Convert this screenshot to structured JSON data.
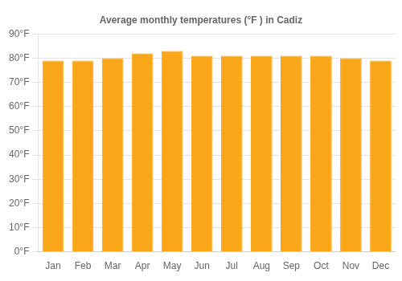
{
  "chart_data": {
    "type": "bar",
    "title": "Average monthly temperatures (°F ) in Cadiz",
    "categories": [
      "Jan",
      "Feb",
      "Mar",
      "Apr",
      "May",
      "Jun",
      "Jul",
      "Aug",
      "Sep",
      "Oct",
      "Nov",
      "Dec"
    ],
    "values": [
      79,
      79,
      80,
      82,
      83,
      81,
      81,
      81,
      81,
      81,
      80,
      79
    ],
    "color": "#f9a619",
    "ylim": [
      0,
      90
    ],
    "yticks": [
      {
        "value": 0,
        "label": "0°F"
      },
      {
        "value": 10,
        "label": "10°F"
      },
      {
        "value": 20,
        "label": "20°F"
      },
      {
        "value": 30,
        "label": "30°F"
      },
      {
        "value": 40,
        "label": "40°F"
      },
      {
        "value": 50,
        "label": "50°F"
      },
      {
        "value": 60,
        "label": "60°F"
      },
      {
        "value": 70,
        "label": "70°F"
      },
      {
        "value": 80,
        "label": "80°F"
      },
      {
        "value": 90,
        "label": "90°F"
      }
    ],
    "grid": true
  }
}
